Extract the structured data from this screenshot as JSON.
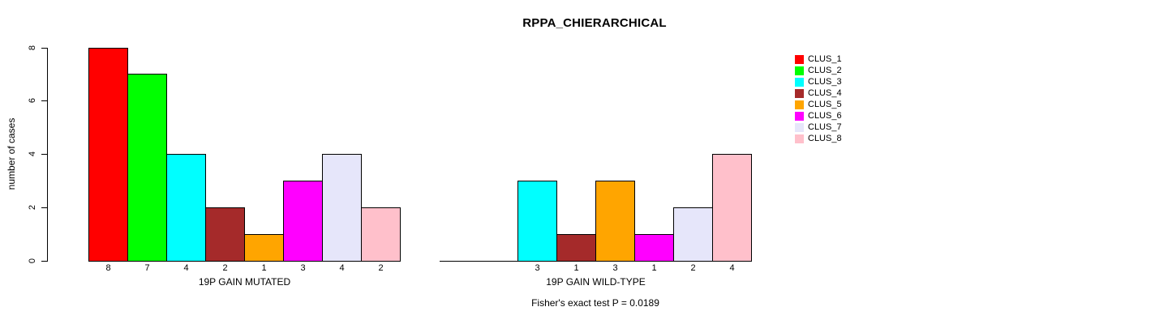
{
  "page": {
    "title": "RPPA_CHIERARCHICAL",
    "footer": "Fisher's exact test P = 0.0189"
  },
  "ylabel": "number of cases",
  "legend": {
    "position": "right",
    "items": [
      {
        "label": "CLUS_1",
        "color": "#FF0000"
      },
      {
        "label": "CLUS_2",
        "color": "#00FF00"
      },
      {
        "label": "CLUS_3",
        "color": "#00FFFF"
      },
      {
        "label": "CLUS_4",
        "color": "#A52A2A"
      },
      {
        "label": "CLUS_5",
        "color": "#FFA500"
      },
      {
        "label": "CLUS_6",
        "color": "#FF00FF"
      },
      {
        "label": "CLUS_7",
        "color": "#E6E6FA"
      },
      {
        "label": "CLUS_8",
        "color": "#FFC0CB"
      }
    ]
  },
  "chart_data": [
    {
      "type": "bar",
      "panel": "left",
      "xlabel": "19P GAIN MUTATED",
      "ylabel": "number of cases",
      "categories": [
        "CLUS_1",
        "CLUS_2",
        "CLUS_3",
        "CLUS_4",
        "CLUS_5",
        "CLUS_6",
        "CLUS_7",
        "CLUS_8"
      ],
      "values": [
        8,
        7,
        4,
        2,
        1,
        3,
        4,
        2
      ],
      "bar_labels": [
        "8",
        "7",
        "4",
        "2",
        "1",
        "3",
        "4",
        "2"
      ],
      "colors": [
        "#FF0000",
        "#00FF00",
        "#00FFFF",
        "#A52A2A",
        "#FFA500",
        "#FF00FF",
        "#E6E6FA",
        "#FFC0CB"
      ],
      "ylim": [
        0,
        8
      ],
      "yticks": [
        0,
        2,
        4,
        6,
        8
      ],
      "grid": false,
      "legend_position": "right"
    },
    {
      "type": "bar",
      "panel": "right",
      "xlabel": "19P GAIN WILD-TYPE",
      "ylabel": "number of cases",
      "categories": [
        "CLUS_1",
        "CLUS_2",
        "CLUS_3",
        "CLUS_4",
        "CLUS_5",
        "CLUS_6",
        "CLUS_7",
        "CLUS_8"
      ],
      "values": [
        0,
        0,
        3,
        1,
        3,
        1,
        2,
        4
      ],
      "bar_labels": [
        "",
        "",
        "3",
        "1",
        "3",
        "1",
        "2",
        "4"
      ],
      "colors": [
        "#FF0000",
        "#00FF00",
        "#00FFFF",
        "#A52A2A",
        "#FFA500",
        "#FF00FF",
        "#E6E6FA",
        "#FFC0CB"
      ],
      "ylim": [
        0,
        8
      ],
      "yticks": [
        0,
        2,
        4,
        6,
        8
      ],
      "grid": false,
      "legend_position": "right"
    }
  ]
}
